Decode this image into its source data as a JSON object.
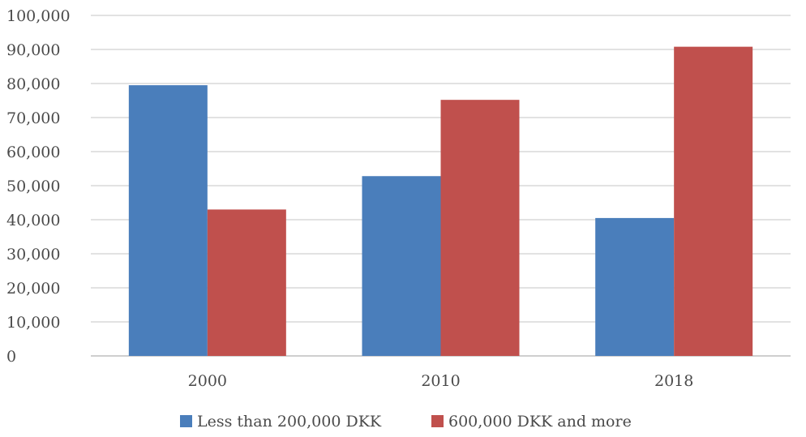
{
  "chart_data": {
    "type": "bar",
    "categories": [
      "2000",
      "2010",
      "2018"
    ],
    "series": [
      {
        "name": "Less than 200,000 DKK",
        "values": [
          79500,
          52800,
          40500
        ],
        "color": "#4a7ebb"
      },
      {
        "name": "600,000 DKK and more",
        "values": [
          43000,
          75200,
          90800
        ],
        "color": "#c0504d"
      }
    ],
    "ylim": [
      0,
      100000
    ],
    "yticks": [
      0,
      10000,
      20000,
      30000,
      40000,
      50000,
      60000,
      70000,
      80000,
      90000,
      100000
    ],
    "ytick_labels": [
      "0",
      "10,000",
      "20,000",
      "30,000",
      "40,000",
      "50,000",
      "60,000",
      "70,000",
      "80,000",
      "90,000",
      "100,000"
    ],
    "grid": true,
    "legend": "bottom"
  }
}
